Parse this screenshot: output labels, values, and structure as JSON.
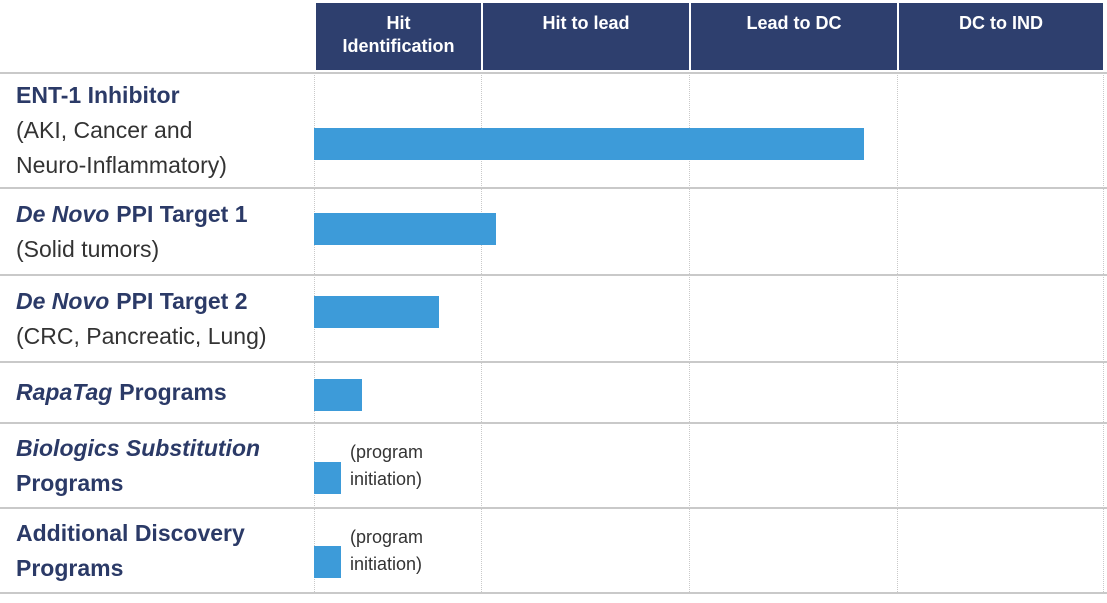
{
  "chart_data": {
    "type": "pipeline",
    "stages": [
      "Hit Identification",
      "Hit to lead",
      "Lead to DC",
      "DC to IND"
    ],
    "xlim": [
      0,
      4
    ],
    "color": "#3d9bd9",
    "categories": [
      {
        "label": [
          [
            {
              "text": "ENT-1 Inhibitor",
              "italic": false
            }
          ]
        ],
        "detail": [
          "(AKI, Cancer and",
          "Neuro-Inflammatory)"
        ]
      },
      {
        "label": [
          [
            {
              "text": "De Novo",
              "italic": true
            },
            {
              "text": "PPI Target 1",
              "italic": false
            }
          ]
        ],
        "detail": [
          "(Solid tumors)"
        ]
      },
      {
        "label": [
          [
            {
              "text": "De Novo",
              "italic": true
            },
            {
              "text": "PPI Target 2",
              "italic": false
            }
          ]
        ],
        "detail": [
          "(CRC, Pancreatic, Lung)"
        ]
      },
      {
        "label": [
          [
            {
              "text": "RapaTag",
              "italic": true
            },
            {
              "text": "Programs",
              "italic": false
            }
          ]
        ]
      },
      {
        "label": [
          [
            {
              "text": "Biologics Substitution",
              "italic": true
            }
          ],
          [
            {
              "text": "Programs",
              "italic": false
            }
          ]
        ],
        "note": [
          "(program",
          "initiation)"
        ]
      },
      {
        "label": [
          [
            {
              "text": "Additional Discovery",
              "italic": false
            }
          ],
          [
            {
              "text": "Programs",
              "italic": false
            }
          ]
        ],
        "note": [
          "(program",
          "initiation)"
        ]
      }
    ],
    "values": [
      2.84,
      1.07,
      0.75,
      0.29,
      0.16,
      0.16
    ]
  }
}
